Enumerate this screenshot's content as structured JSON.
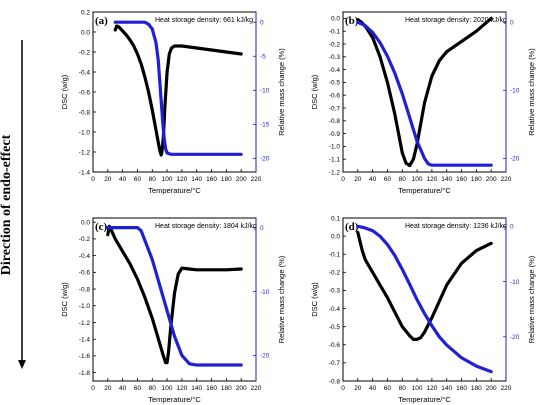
{
  "figure": {
    "side_label": "Direction of endo-effect",
    "colors": {
      "dsc": "#000000",
      "mass": "#1f1fd6",
      "axis": "#000000"
    }
  },
  "chart_data": [
    {
      "type": "line",
      "panel_label": "(a)",
      "annotation": "Heat storage density: 661 kJ/kg",
      "xlabel": "Temperature/°C",
      "ylabel_left": "DSC (w/g)",
      "ylabel_right": "Relative mass change (%)",
      "xlim": [
        0,
        220
      ],
      "ylim_left": [
        -1.4,
        0.2
      ],
      "ylim_right": [
        -22,
        1.5
      ],
      "xticks": [
        0,
        20,
        40,
        60,
        80,
        100,
        120,
        140,
        160,
        180,
        200,
        220
      ],
      "yticks_left": [
        -1.4,
        -1.2,
        -1.0,
        -0.8,
        -0.6,
        -0.4,
        -0.2,
        0.0,
        0.2
      ],
      "ytick_left_labels": [
        "-1.4",
        "-1.2",
        "-1.0",
        "-0.8",
        "-0.6",
        "-0.4",
        "-0.2",
        "0.0",
        "0.2"
      ],
      "yticks_right": [
        0,
        -5,
        -10,
        -15,
        -20
      ],
      "series": [
        {
          "axis": "left",
          "x": [
            30,
            32,
            35,
            40,
            45,
            50,
            55,
            60,
            65,
            70,
            75,
            80,
            85,
            88,
            90,
            92,
            93,
            95,
            97,
            100,
            103,
            106,
            110,
            120,
            140,
            160,
            180,
            200
          ],
          "y": [
            0.02,
            0.06,
            0.05,
            0.01,
            -0.03,
            -0.08,
            -0.14,
            -0.22,
            -0.32,
            -0.45,
            -0.6,
            -0.78,
            -0.98,
            -1.1,
            -1.18,
            -1.23,
            -1.2,
            -1.05,
            -0.75,
            -0.4,
            -0.22,
            -0.16,
            -0.14,
            -0.14,
            -0.16,
            -0.18,
            -0.2,
            -0.22
          ]
        },
        {
          "axis": "right",
          "x": [
            30,
            40,
            50,
            60,
            70,
            75,
            80,
            85,
            88,
            90,
            92,
            94,
            96,
            98,
            100,
            105,
            110,
            130,
            160,
            200
          ],
          "y": [
            0,
            0,
            0,
            0,
            0,
            -0.3,
            -1,
            -3,
            -5.5,
            -8.5,
            -11.5,
            -14.5,
            -17,
            -18.6,
            -19.2,
            -19.4,
            -19.4,
            -19.4,
            -19.4,
            -19.4
          ]
        }
      ]
    },
    {
      "type": "line",
      "panel_label": "(b)",
      "annotation": "Heat storage density: 2020 kJ/kg",
      "xlabel": "Temperature/°C",
      "ylabel_left": "DSC (w/g)",
      "ylabel_right": "Relative mass change (%)",
      "xlim": [
        0,
        220
      ],
      "ylim_left": [
        -1.2,
        0.05
      ],
      "ylim_right": [
        -22,
        1.5
      ],
      "xticks": [
        0,
        20,
        40,
        60,
        80,
        100,
        120,
        140,
        160,
        180,
        200,
        220
      ],
      "yticks_left": [
        -1.2,
        -1.1,
        -1.0,
        -0.9,
        -0.8,
        -0.7,
        -0.6,
        -0.5,
        -0.4,
        -0.3,
        -0.2,
        -0.1,
        0.0
      ],
      "ytick_left_labels": [
        "-1.2",
        "-1.1",
        "-1.0",
        "-0.9",
        "-0.8",
        "-0.7",
        "-0.6",
        "-0.5",
        "-0.4",
        "-0.3",
        "-0.2",
        "-0.1",
        "0.0"
      ],
      "yticks_right": [
        0,
        -10,
        -20
      ],
      "series": [
        {
          "axis": "left",
          "x": [
            20,
            25,
            30,
            40,
            50,
            60,
            70,
            75,
            80,
            85,
            90,
            95,
            100,
            105,
            110,
            120,
            130,
            140,
            160,
            180,
            200
          ],
          "y": [
            -0.01,
            -0.03,
            -0.06,
            -0.15,
            -0.3,
            -0.5,
            -0.75,
            -0.9,
            -1.05,
            -1.13,
            -1.15,
            -1.1,
            -0.98,
            -0.82,
            -0.66,
            -0.45,
            -0.33,
            -0.26,
            -0.18,
            -0.1,
            0.0
          ]
        },
        {
          "axis": "right",
          "x": [
            20,
            30,
            40,
            50,
            60,
            70,
            80,
            90,
            100,
            110,
            115,
            120,
            125,
            130,
            150,
            200
          ],
          "y": [
            0,
            -0.5,
            -1.5,
            -3,
            -5,
            -7.5,
            -10.5,
            -14,
            -17.5,
            -20,
            -20.8,
            -21,
            -21,
            -21,
            -21,
            -21
          ]
        }
      ]
    },
    {
      "type": "line",
      "panel_label": "(c)",
      "annotation": "Heat storage density: 1804 kJ/kg",
      "xlabel": "Temperature/°C",
      "ylabel_left": "DSC (w/g)",
      "ylabel_right": "Relative mass change (%)",
      "xlim": [
        0,
        220
      ],
      "ylim_left": [
        -1.9,
        0.05
      ],
      "ylim_right": [
        -24,
        1.5
      ],
      "xticks": [
        0,
        20,
        40,
        60,
        80,
        100,
        120,
        140,
        160,
        180,
        200,
        220
      ],
      "yticks_left": [
        -1.8,
        -1.6,
        -1.4,
        -1.2,
        -1.0,
        -0.8,
        -0.6,
        -0.4,
        -0.2,
        0.0
      ],
      "ytick_left_labels": [
        "-1.8",
        "-1.6",
        "-1.4",
        "-1.2",
        "-1.0",
        "-0.8",
        "-0.6",
        "-0.4",
        "-0.2",
        "0.0"
      ],
      "yticks_right": [
        0,
        -10,
        -20
      ],
      "series": [
        {
          "axis": "left",
          "x": [
            20,
            22,
            25,
            30,
            40,
            50,
            60,
            70,
            80,
            90,
            95,
            98,
            100,
            102,
            105,
            110,
            115,
            120,
            130,
            140,
            160,
            180,
            200
          ],
          "y": [
            -0.15,
            -0.05,
            -0.1,
            -0.2,
            -0.35,
            -0.5,
            -0.68,
            -0.9,
            -1.15,
            -1.45,
            -1.6,
            -1.68,
            -1.68,
            -1.55,
            -1.25,
            -0.85,
            -0.62,
            -0.55,
            -0.56,
            -0.57,
            -0.57,
            -0.57,
            -0.56
          ]
        },
        {
          "axis": "right",
          "x": [
            20,
            40,
            60,
            65,
            70,
            80,
            90,
            100,
            110,
            120,
            130,
            140,
            160,
            200
          ],
          "y": [
            0,
            0,
            0,
            -0.5,
            -2,
            -5,
            -9,
            -13,
            -17,
            -20,
            -21.3,
            -21.5,
            -21.5,
            -21.5
          ]
        }
      ]
    },
    {
      "type": "line",
      "panel_label": "(d)",
      "annotation": "Heat storage density: 1236 kJ/kg",
      "xlabel": "Temperature/°C",
      "ylabel_left": "DSC (w/g)",
      "ylabel_right": "Relative mass change (%)",
      "xlim": [
        0,
        220
      ],
      "ylim_left": [
        -0.8,
        0.1
      ],
      "ylim_right": [
        -28,
        1.5
      ],
      "xticks": [
        0,
        20,
        40,
        60,
        80,
        100,
        120,
        140,
        160,
        180,
        200,
        220
      ],
      "yticks_left": [
        -0.8,
        -0.7,
        -0.6,
        -0.5,
        -0.4,
        -0.3,
        -0.2,
        -0.1,
        0.0,
        0.1
      ],
      "ytick_left_labels": [
        "-0.8",
        "-0.7",
        "-0.6",
        "-0.5",
        "-0.4",
        "-0.3",
        "-0.2",
        "-0.1",
        "0.0",
        "0.1"
      ],
      "yticks_right": [
        0,
        -10,
        -20
      ],
      "series": [
        {
          "axis": "left",
          "x": [
            20,
            23,
            26,
            30,
            40,
            50,
            60,
            70,
            80,
            90,
            95,
            100,
            105,
            110,
            120,
            130,
            140,
            160,
            180,
            200
          ],
          "y": [
            0.02,
            -0.03,
            -0.08,
            -0.13,
            -0.2,
            -0.27,
            -0.34,
            -0.42,
            -0.5,
            -0.55,
            -0.57,
            -0.57,
            -0.56,
            -0.53,
            -0.45,
            -0.36,
            -0.27,
            -0.15,
            -0.08,
            -0.04
          ]
        },
        {
          "axis": "right",
          "x": [
            20,
            30,
            40,
            50,
            60,
            70,
            80,
            90,
            100,
            110,
            120,
            130,
            140,
            160,
            180,
            200
          ],
          "y": [
            0,
            -0.3,
            -0.8,
            -1.8,
            -3.3,
            -5.3,
            -7.8,
            -10.5,
            -13.3,
            -15.8,
            -18,
            -20,
            -21.5,
            -23.8,
            -25.3,
            -26.3
          ]
        }
      ]
    }
  ]
}
